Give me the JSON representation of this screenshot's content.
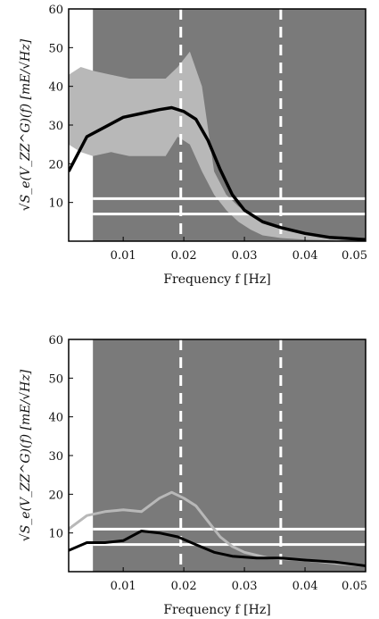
{
  "colors": {
    "background": "#ffffff",
    "shade": "#7a7a7a",
    "dark_series": "#000000",
    "light_series": "#b8b8b8",
    "ref_lines": "#ffffff"
  },
  "chart_data": [
    {
      "type": "line",
      "xlabel": "Frequency f [Hz]",
      "ylabel": "√S_e(V_ZZ^G)(f) [mE/√Hz]",
      "xlim": [
        0.001,
        0.05
      ],
      "ylim": [
        0,
        60
      ],
      "x_ticks": [
        "0.01",
        "0.02",
        "0.03",
        "0.04",
        "0.05"
      ],
      "y_ticks": [
        "10",
        "20",
        "30",
        "40",
        "50",
        "60"
      ],
      "grid": false,
      "shaded_region": [
        0.005,
        0.05
      ],
      "vertical_dashed_lines": [
        0.0195,
        0.036
      ],
      "horizontal_lines": [
        11,
        7
      ],
      "series": [
        {
          "style": "band",
          "color": "light",
          "x": [
            0.001,
            0.003,
            0.005,
            0.008,
            0.011,
            0.014,
            0.017,
            0.019,
            0.021,
            0.023,
            0.025,
            0.027,
            0.029,
            0.031,
            0.033,
            0.036,
            0.04,
            0.045,
            0.05
          ],
          "upper": [
            43,
            45,
            44,
            43,
            42,
            42,
            42,
            45,
            49,
            40,
            18,
            12,
            9,
            7,
            5,
            3.5,
            2,
            1,
            0.5
          ],
          "lower": [
            25,
            23,
            22,
            23,
            22,
            22,
            22,
            27,
            25,
            18,
            12,
            8,
            5,
            3,
            1.5,
            0.8,
            0.4,
            0.2,
            0.1
          ]
        },
        {
          "style": "line",
          "color": "dark",
          "x": [
            0.001,
            0.004,
            0.007,
            0.01,
            0.013,
            0.016,
            0.018,
            0.02,
            0.022,
            0.024,
            0.026,
            0.028,
            0.03,
            0.033,
            0.036,
            0.04,
            0.044,
            0.048,
            0.05
          ],
          "values": [
            18,
            27,
            29.5,
            32,
            33,
            34,
            34.5,
            33.5,
            31.5,
            26,
            18.5,
            12,
            8,
            5,
            3.5,
            2,
            1,
            0.6,
            0.4
          ]
        }
      ]
    },
    {
      "type": "line",
      "xlabel": "Frequency f [Hz]",
      "ylabel": "√S_e(V_ZZ^G)(f) [mE/√Hz]",
      "xlim": [
        0.001,
        0.05
      ],
      "ylim": [
        0,
        60
      ],
      "x_ticks": [
        "0.01",
        "0.02",
        "0.03",
        "0.04",
        "0.05"
      ],
      "y_ticks": [
        "10",
        "20",
        "30",
        "40",
        "50",
        "60"
      ],
      "grid": false,
      "shaded_region": [
        0.005,
        0.05
      ],
      "vertical_dashed_lines": [
        0.0195,
        0.036
      ],
      "horizontal_lines": [
        11,
        7
      ],
      "series": [
        {
          "style": "line",
          "color": "light",
          "x": [
            0.001,
            0.004,
            0.007,
            0.01,
            0.013,
            0.016,
            0.018,
            0.02,
            0.022,
            0.024,
            0.026,
            0.028,
            0.03,
            0.034,
            0.04,
            0.046,
            0.05
          ],
          "values": [
            11,
            14.5,
            15.5,
            16,
            15.5,
            19,
            20.5,
            19,
            17,
            13,
            9,
            6.5,
            5,
            3.5,
            3,
            2,
            1.5
          ]
        },
        {
          "style": "line",
          "color": "dark",
          "x": [
            0.001,
            0.004,
            0.007,
            0.01,
            0.013,
            0.016,
            0.019,
            0.022,
            0.025,
            0.028,
            0.032,
            0.036,
            0.04,
            0.045,
            0.05
          ],
          "values": [
            5.5,
            7.5,
            7.5,
            8,
            10.5,
            10,
            9,
            7,
            5,
            4,
            3.5,
            3.5,
            3,
            2.5,
            1.5
          ]
        }
      ]
    }
  ]
}
